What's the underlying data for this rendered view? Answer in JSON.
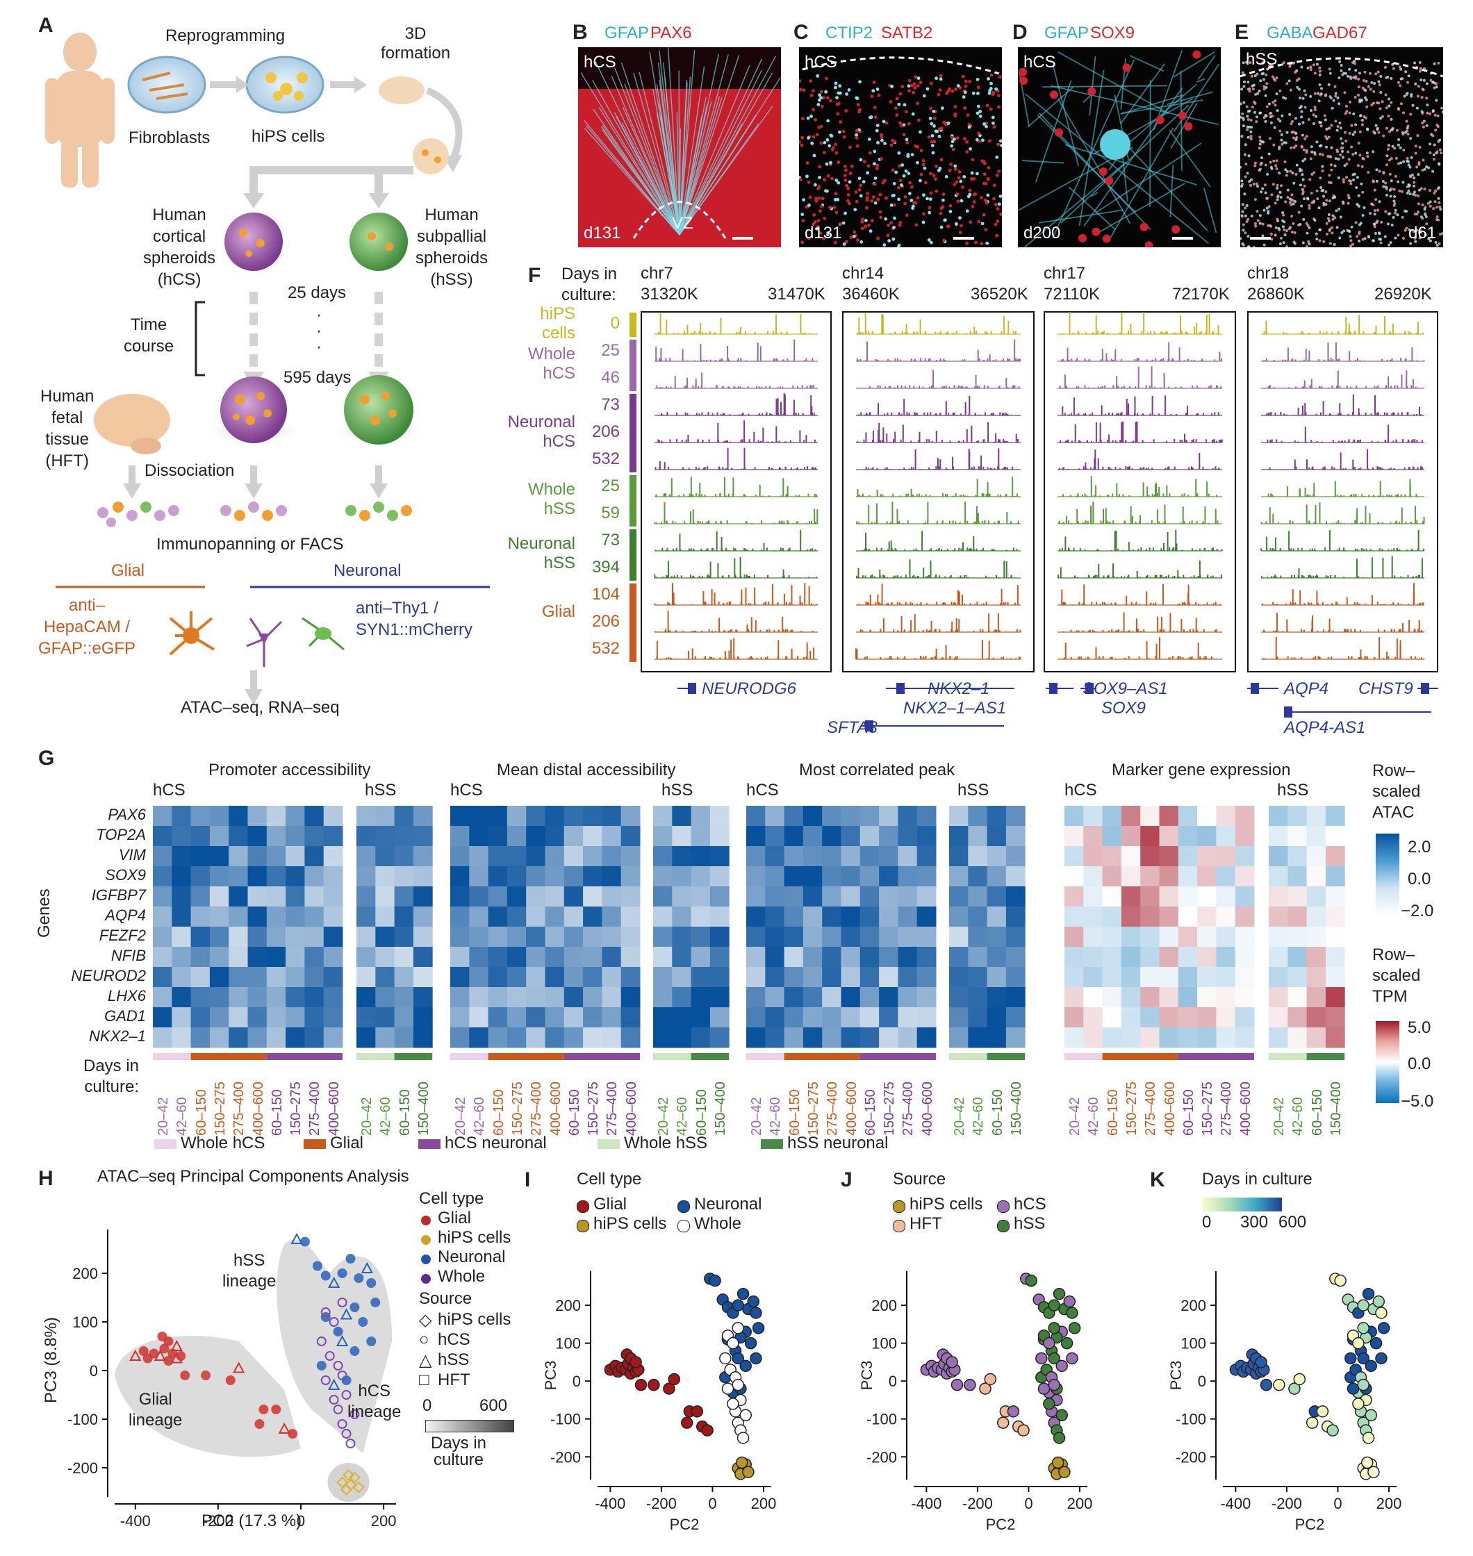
{
  "panel_a": {
    "label": "A",
    "reprogramming": "Reprogramming",
    "fibroblasts": "Fibroblasts",
    "hips": "hiPS cells",
    "formation_3d": "3D\nformation",
    "hcs_title": "Human\ncortical\nspheroids\n(hCS)",
    "hss_title": "Human\nsubpallial\nspheroids\n(hSS)",
    "days_25": "25 days",
    "dots": "·",
    "days_595": "595 days",
    "time_course": "Time\ncourse",
    "hft": "Human\nfetal\ntissue\n(HFT)",
    "dissociation": "Dissociation",
    "immunopanning": "Immunopanning or FACS",
    "glial": "Glial",
    "neuronal": "Neuronal",
    "glial_method": "anti–\nHepaCAM /\nGFAP::eGFP",
    "neuronal_method": "anti–Thy1 /\nSYN1::mCherry",
    "output": "ATAC–seq, RNA–seq"
  },
  "micro_panels": [
    {
      "label": "B",
      "stain1": "GFAP",
      "stain2": "PAX6",
      "tag": "hCS",
      "day": "d131",
      "extra": "VZ"
    },
    {
      "label": "C",
      "stain1": "CTIP2",
      "stain2": "SATB2",
      "tag": "hCS",
      "day": "d131",
      "extra": ""
    },
    {
      "label": "D",
      "stain1": "GFAP",
      "stain2": "SOX9",
      "tag": "hCS",
      "day": "d200",
      "extra": ""
    },
    {
      "label": "E",
      "stain1": "GABA",
      "stain2": "GAD67",
      "tag": "hSS",
      "day": "d61",
      "extra": ""
    }
  ],
  "panel_f": {
    "label": "F",
    "days_header": "Days in\nculture:",
    "groups": [
      {
        "name": "hiPS\ncells",
        "color": "#c9b81e",
        "days": [
          "0"
        ]
      },
      {
        "name": "Whole\nhCS",
        "color": "#9a6aa8",
        "days": [
          "25",
          "46"
        ]
      },
      {
        "name": "Neuronal\nhCS",
        "color": "#7b3a8e",
        "days": [
          "73",
          "206",
          "532"
        ]
      },
      {
        "name": "Whole\nhSS",
        "color": "#5c9a3c",
        "days": [
          "25",
          "59"
        ]
      },
      {
        "name": "Neuronal\nhSS",
        "color": "#3f7f30",
        "days": [
          "73",
          "394"
        ]
      },
      {
        "name": "Glial",
        "color": "#c85a1e",
        "days": [
          "104",
          "206",
          "532"
        ]
      }
    ],
    "loci": [
      {
        "chr": "chr7",
        "start": "31320K",
        "end": "31470K",
        "genes": [
          "NEURODG6"
        ]
      },
      {
        "chr": "chr14",
        "start": "36460K",
        "end": "36520K",
        "genes": [
          "NKX2–1",
          "NKX2–1–AS1",
          "SFTA3"
        ]
      },
      {
        "chr": "chr17",
        "start": "72110K",
        "end": "72170K",
        "genes": [
          "SOX9–AS1",
          "SOX9"
        ]
      },
      {
        "chr": "chr18",
        "start": "26860K",
        "end": "26920K",
        "genes": [
          "AQP4",
          "CHST9",
          "AQP4-AS1"
        ]
      }
    ]
  },
  "panel_g": {
    "label": "G",
    "blocks": [
      "Promoter accessibility",
      "Mean distal accessibility",
      "Most correlated peak",
      "Marker gene expression"
    ],
    "hcs": "hCS",
    "hss": "hSS",
    "genes_axis": "Genes",
    "genes": [
      "PAX6",
      "TOP2A",
      "VIM",
      "SOX9",
      "IGFBP7",
      "AQP4",
      "FEZF2",
      "NFIB",
      "NEUROD2",
      "LHX6",
      "GAD1",
      "NKX2–1"
    ],
    "days_label": "Days in\nculture:",
    "hcs_cols": [
      "20–42",
      "42–60",
      "60–150",
      "150–275",
      "275–400",
      "400–600",
      "60–150",
      "150–275",
      "275–400",
      "400–600"
    ],
    "hss_cols": [
      "20–42",
      "42–60",
      "60–150",
      "150–400"
    ],
    "legend_atac_title": "Row–\nscaled\nATAC",
    "legend_atac_ticks": [
      "2.0",
      "0.0",
      "−2.0"
    ],
    "legend_tpm_title": "Row–\nscaled\nTPM",
    "legend_tpm_ticks": [
      "5.0",
      "0.0",
      "−5.0"
    ],
    "bottom_legend": [
      {
        "label": "Whole hCS",
        "color": "#ecd3ea"
      },
      {
        "label": "Glial",
        "color": "#c85a1e"
      },
      {
        "label": "hCS neuronal",
        "color": "#8a4b9e"
      },
      {
        "label": "Whole hSS",
        "color": "#cfe6c2"
      },
      {
        "label": "hSS neuronal",
        "color": "#4a8a48"
      }
    ]
  },
  "panel_h": {
    "label": "H",
    "title": "ATAC–seq Principal Components Analysis",
    "xlabel": "PC2 (17.3 %)",
    "ylabel": "PC3 (8.8%)",
    "hss_lineage": "hSS\nlineage",
    "glial_lineage": "Glial\nlineage",
    "hcs_lineage": "hCS\nlineage",
    "legend_cell_type": "Cell type",
    "cell_types": [
      {
        "label": "Glial",
        "color": "#c0292b"
      },
      {
        "label": "hiPS cells",
        "color": "#c9a52a"
      },
      {
        "label": "Neuronal",
        "color": "#1f56a8"
      },
      {
        "label": "Whole",
        "color": "#5b2c8e"
      }
    ],
    "legend_source": "Source",
    "sources": [
      {
        "label": "hiPS cells",
        "shape": "diamond"
      },
      {
        "label": "hCS",
        "shape": "circle"
      },
      {
        "label": "hSS",
        "shape": "triangle"
      },
      {
        "label": "HFT",
        "shape": "square"
      }
    ],
    "gradient_min": "0",
    "gradient_max": "600",
    "gradient_title": "Days in\nculture"
  },
  "panel_i": {
    "label": "I",
    "legend_title": "Cell type",
    "items": [
      {
        "label": "Glial",
        "color": "#a0181c"
      },
      {
        "label": "Neuronal",
        "color": "#1b4f9a"
      },
      {
        "label": "hiPS cells",
        "color": "#b8962a"
      },
      {
        "label": "Whole",
        "color": "#ffffff"
      }
    ],
    "xlabel": "PC2",
    "ylabel": "PC3"
  },
  "panel_j": {
    "label": "J",
    "legend_title": "Source",
    "items": [
      {
        "label": "hiPS cells",
        "color": "#b8962a"
      },
      {
        "label": "hCS",
        "color": "#9a70b4"
      },
      {
        "label": "HFT",
        "color": "#f2b99a"
      },
      {
        "label": "hSS",
        "color": "#3f7f3a"
      }
    ],
    "xlabel": "PC2",
    "ylabel": "PC3"
  },
  "panel_k": {
    "label": "K",
    "legend_title": "Days in culture",
    "ticks": [
      "0",
      "300",
      "600"
    ],
    "xlabel": "PC2",
    "ylabel": "PC3"
  },
  "chart_data": [
    {
      "type": "scatter",
      "title": "ATAC–seq Principal Components Analysis",
      "xlabel": "PC2 (17.3 %)",
      "ylabel": "PC3 (8.8%)",
      "xlim": [
        -450,
        230
      ],
      "ylim": [
        -260,
        290
      ],
      "xticks": [
        -400,
        -200,
        0,
        200
      ],
      "yticks": [
        -200,
        -100,
        0,
        100,
        200
      ],
      "series": [
        {
          "name": "Glial",
          "values": [
            [
              -400,
              30
            ],
            [
              -380,
              40
            ],
            [
              -370,
              25
            ],
            [
              -355,
              35
            ],
            [
              -340,
              30
            ],
            [
              -330,
              45
            ],
            [
              -320,
              20
            ],
            [
              -310,
              35
            ],
            [
              -300,
              25
            ],
            [
              -290,
              30
            ],
            [
              -335,
              70
            ],
            [
              -320,
              60
            ],
            [
              -300,
              50
            ],
            [
              -280,
              -10
            ],
            [
              -230,
              -10
            ],
            [
              -170,
              -20
            ],
            [
              -150,
              5
            ],
            [
              -100,
              -110
            ],
            [
              -90,
              -80
            ],
            [
              -60,
              -80
            ],
            [
              -40,
              -120
            ],
            [
              -20,
              -130
            ]
          ]
        },
        {
          "name": "Neuronal",
          "values": [
            [
              -10,
              270
            ],
            [
              10,
              265
            ],
            [
              40,
              215
            ],
            [
              60,
              195
            ],
            [
              80,
              180
            ],
            [
              100,
              200
            ],
            [
              120,
              230
            ],
            [
              140,
              190
            ],
            [
              160,
              210
            ],
            [
              170,
              180
            ],
            [
              180,
              140
            ],
            [
              130,
              130
            ],
            [
              110,
              115
            ],
            [
              150,
              100
            ],
            [
              60,
              110
            ],
            [
              90,
              80
            ],
            [
              100,
              60
            ],
            [
              130,
              40
            ],
            [
              170,
              60
            ],
            [
              50,
              10
            ],
            [
              80,
              -30
            ],
            [
              110,
              -20
            ]
          ]
        },
        {
          "name": "hiPS cells",
          "values": [
            [
              100,
              -230
            ],
            [
              120,
              -235
            ],
            [
              110,
              -245
            ],
            [
              130,
              -220
            ],
            [
              140,
              -240
            ],
            [
              115,
              -215
            ]
          ]
        },
        {
          "name": "Whole",
          "values": [
            [
              60,
              120
            ],
            [
              80,
              100
            ],
            [
              100,
              140
            ],
            [
              50,
              60
            ],
            [
              70,
              30
            ],
            [
              90,
              10
            ],
            [
              100,
              -10
            ],
            [
              110,
              -50
            ],
            [
              90,
              -80
            ],
            [
              100,
              -110
            ],
            [
              110,
              -130
            ],
            [
              120,
              -150
            ],
            [
              60,
              -20
            ],
            [
              80,
              -60
            ],
            [
              130,
              -90
            ]
          ]
        }
      ]
    },
    {
      "type": "heatmap",
      "title": "Promoter accessibility",
      "rows": [
        "PAX6",
        "TOP2A",
        "VIM",
        "SOX9",
        "IGFBP7",
        "AQP4",
        "FEZF2",
        "NFIB",
        "NEUROD2",
        "LHX6",
        "GAD1",
        "NKX2–1"
      ]
    }
  ]
}
